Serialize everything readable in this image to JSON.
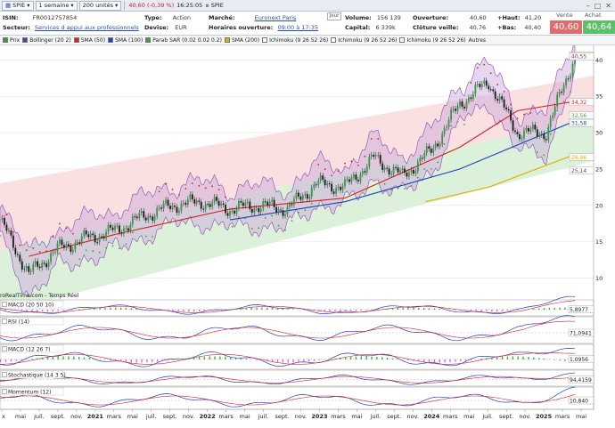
{
  "toolbar": {
    "ticker": "SPIE",
    "period": "1 semaine",
    "units": "200 unités",
    "price_change": "40,60 (-0,39 %)",
    "time": "16:25:05",
    "ticker2": "SPIE"
  },
  "info": {
    "isin_label": "ISIN:",
    "isin": "FR0012757854",
    "secteur_label": "Secteur:",
    "secteur": "Services d appui aux professionnels",
    "type_label": "Type:",
    "type": "Action",
    "devise_label": "Devise:",
    "devise": "EUR",
    "marche_label": "Marché:",
    "marche": "Euronext Paris",
    "horaires_label": "Horaires ouverture:",
    "horaires": "09:00 à 17:35",
    "jour": "Jour",
    "volume_label": "Volume:",
    "volume": "156 139",
    "capital_label": "Capital:",
    "capital": "6 339k",
    "ouverture_label": "Ouverture:",
    "ouverture": "40,60",
    "cloture_label": "Clôture veille:",
    "cloture": "40,76",
    "haut_label": "+Haut:",
    "haut": "41,20",
    "bas_label": "+Bas:",
    "bas": "40,40",
    "vente_label": "Vente",
    "vente": "40,60",
    "achat_label": "Achat",
    "achat": "40,64"
  },
  "legend": [
    {
      "label": "Prix",
      "color": "#2e9e3e"
    },
    {
      "label": "Bollinger (20 2)",
      "color": "#7030a0"
    },
    {
      "label": "SMA (50)",
      "color": "#d42020"
    },
    {
      "label": "SMA (100)",
      "color": "#2040c0"
    },
    {
      "label": "Parab SAR (0.02 0.02 0.2)",
      "color": "#40a040"
    },
    {
      "label": "SMA (200)",
      "color": "#e0b000"
    },
    {
      "label": "Ichimoku (9 26 52 26)",
      "color": "#ffffff"
    },
    {
      "label": "Ichimoku (9 26 52 26)",
      "color": "#ffffff"
    },
    {
      "label": "Ichimoku (9 26 52 26)",
      "color": "#ffffff"
    },
    {
      "label": "Autres",
      "color": ""
    }
  ],
  "price_panel": {
    "watermark": "roRealTime.com - Temps Réel",
    "markers": [
      {
        "label": "40,60",
        "bg": "#ffff66",
        "fg": "#000000"
      },
      {
        "label": "40,55",
        "bg": "#ffffff",
        "fg": "#7030a0"
      },
      {
        "label": "34,32",
        "bg": "#ffffff",
        "fg": "#d42020"
      },
      {
        "label": "32,56",
        "bg": "#ffffff",
        "fg": "#40a040"
      },
      {
        "label": "31,58",
        "bg": "#ffffff",
        "fg": "#2040c0"
      },
      {
        "label": "26,96",
        "bg": "#ffffff",
        "fg": "#e0b000"
      },
      {
        "label": "25,14",
        "bg": "#ffffff",
        "fg": "#7030a0"
      }
    ]
  },
  "chart_data": {
    "type": "line",
    "title": "",
    "ylim": [
      7,
      42
    ],
    "yticks": [
      "10",
      "15",
      "20",
      "25",
      "30",
      "35",
      "40"
    ],
    "x_labels": [
      "x",
      "mai",
      "juil.",
      "sept.",
      "nov.",
      "2021",
      "mars",
      "mai",
      "juil.",
      "sept.",
      "nov.",
      "2022",
      "mars",
      "mai",
      "juil.",
      "sept.",
      "nov.",
      "2023",
      "mars",
      "mai",
      "juil.",
      "sept.",
      "nov.",
      "2024",
      "mars",
      "mai",
      "juil.",
      "sept.",
      "nov.",
      "2025",
      "mars",
      "mai"
    ],
    "series": [
      {
        "name": "Prix",
        "x": [
          0,
          5,
          10,
          15,
          20,
          25,
          30,
          35,
          40,
          45,
          50,
          55,
          60,
          65,
          70,
          75,
          80,
          85,
          90,
          95,
          100
        ],
        "values": [
          18,
          10.5,
          14,
          15.5,
          16.5,
          18.5,
          20,
          20.5,
          19.5,
          20,
          19.5,
          23,
          22.5,
          26.5,
          24,
          27.5,
          34,
          37,
          30,
          30,
          40.6
        ]
      },
      {
        "name": "SMA (50)",
        "x": [
          5,
          20,
          40,
          60,
          80,
          90,
          100
        ],
        "values": [
          13,
          16,
          19.5,
          21,
          28,
          33,
          34.3
        ]
      },
      {
        "name": "SMA (100)",
        "x": [
          40,
          60,
          80,
          100
        ],
        "values": [
          18,
          20.5,
          25,
          31.6
        ]
      },
      {
        "name": "SMA (200)",
        "x": [
          74,
          85,
          100
        ],
        "values": [
          20.5,
          22.5,
          27
        ]
      }
    ]
  },
  "indicators": [
    {
      "label": "MACD (20 50 10)",
      "value": "5,8977"
    },
    {
      "label": "RSI (14)",
      "value": "71,0941"
    },
    {
      "label": "MACD (12 26 7)",
      "value": "1,0956"
    },
    {
      "label": "Stochastique (14 3 5)",
      "value": "94,4159"
    },
    {
      "label": "Momentum (12)",
      "value": "10,840"
    }
  ]
}
